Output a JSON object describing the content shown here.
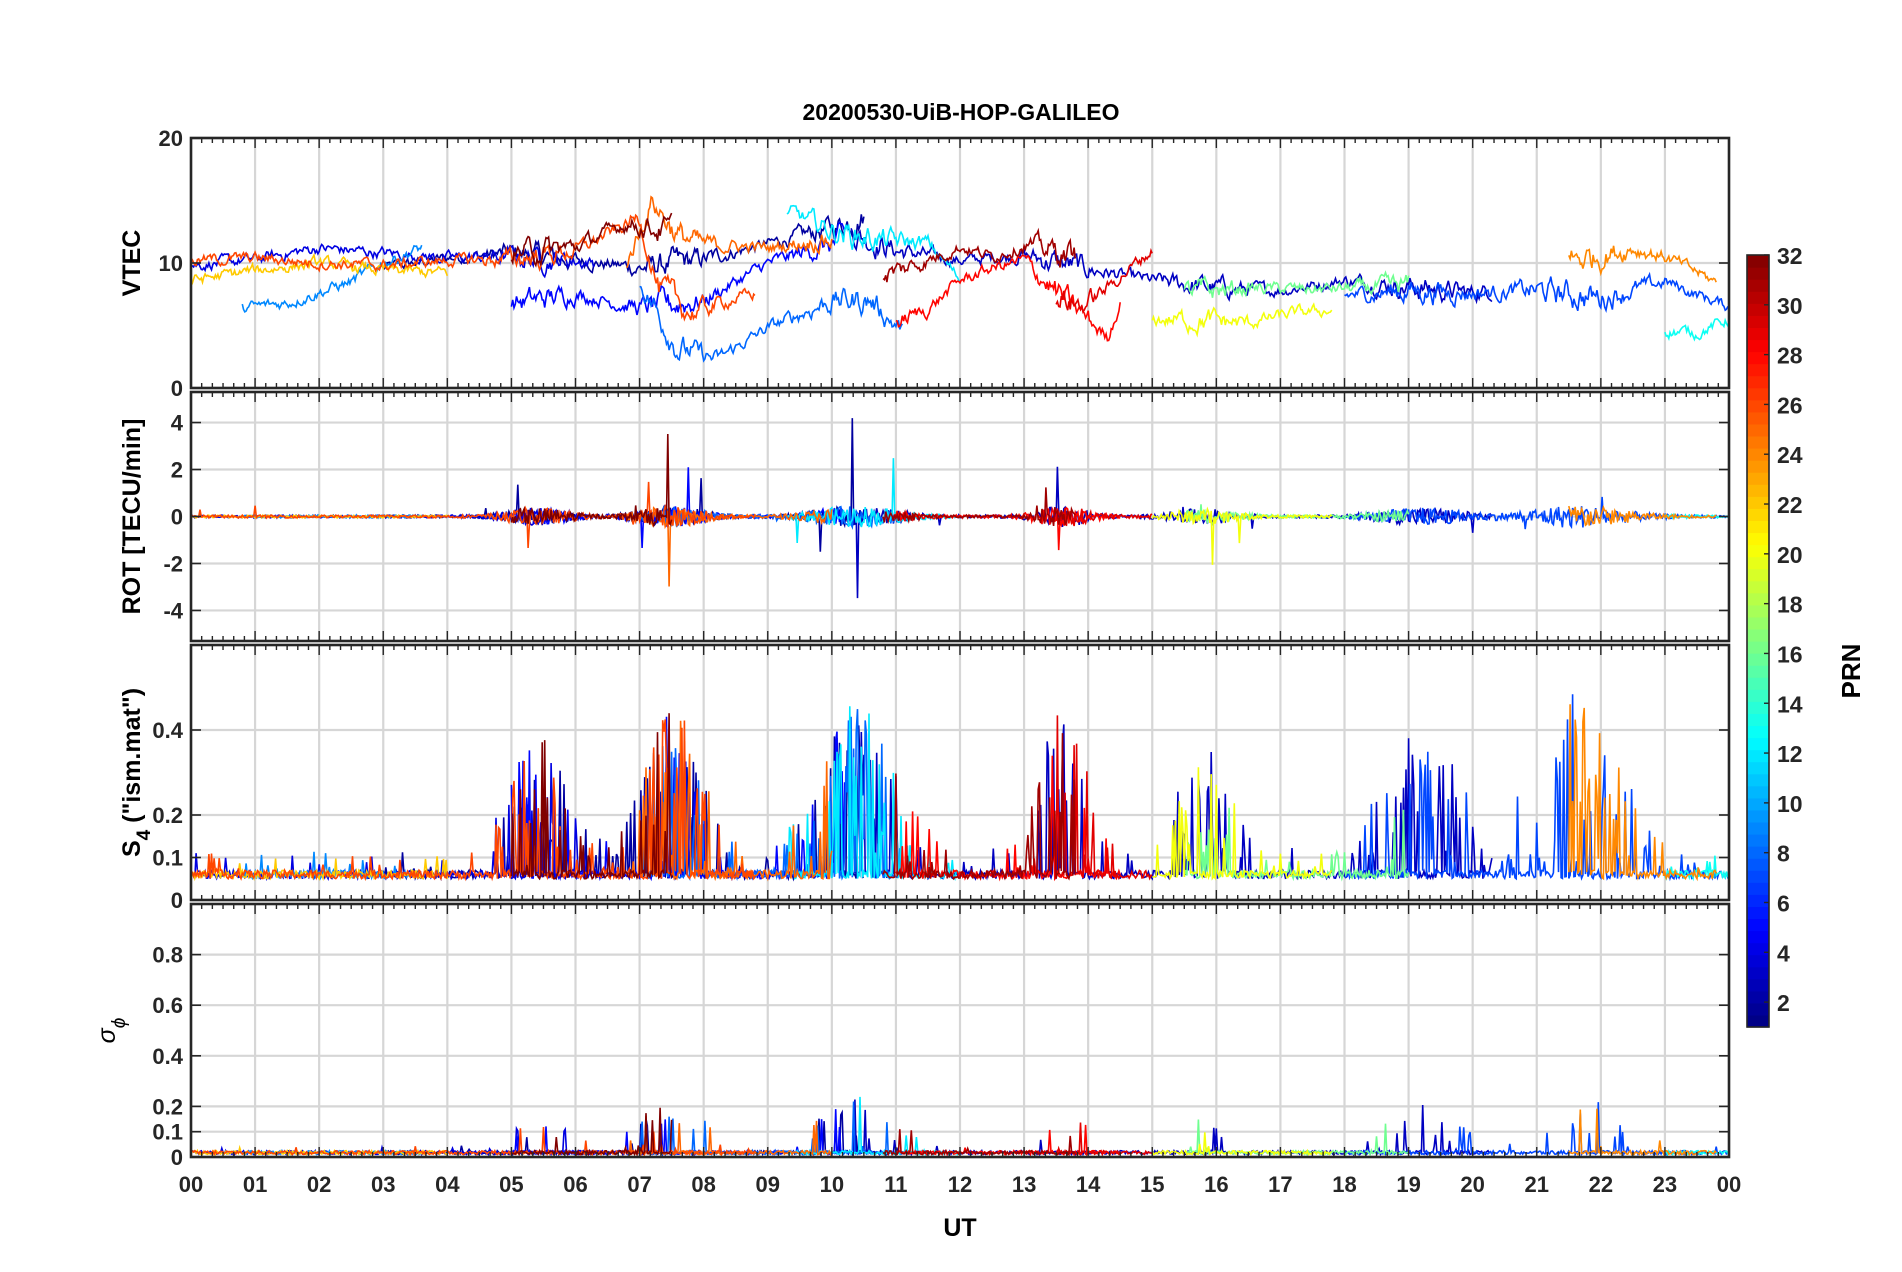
{
  "title": "20200530-UiB-HOP-GALILEO",
  "chart_data": {
    "type": "line",
    "title": "20200530-UiB-HOP-GALILEO",
    "xlabel": "UT",
    "xlim": [
      0,
      24
    ],
    "xticks": [
      "00",
      "01",
      "02",
      "03",
      "04",
      "05",
      "06",
      "07",
      "08",
      "09",
      "10",
      "11",
      "12",
      "13",
      "14",
      "15",
      "16",
      "17",
      "18",
      "19",
      "20",
      "21",
      "22",
      "23",
      "00"
    ],
    "panels": [
      {
        "id": "vtec",
        "ylabel": "VTEC",
        "ylim": [
          0,
          20
        ],
        "yticks": [
          0,
          10,
          20
        ],
        "ytick_labels": [
          "0",
          "10",
          "20"
        ],
        "grid": true
      },
      {
        "id": "rot",
        "ylabel": "ROT [TECU/min]",
        "ylim": [
          -5.3,
          5.3
        ],
        "yticks": [
          -4,
          -2,
          0,
          2,
          4
        ],
        "ytick_labels": [
          "-4",
          "-2",
          "0",
          "2",
          "4"
        ],
        "grid": true
      },
      {
        "id": "s4",
        "ylabel_main": "S",
        "ylabel_sub": "4",
        "ylabel_rest": " (\"ism.mat\")",
        "ylim": [
          0,
          0.6
        ],
        "yticks": [
          0,
          0.1,
          0.2,
          0.4
        ],
        "ytick_labels": [
          "0",
          "0.1",
          "0.2",
          "0.4"
        ],
        "grid": true
      },
      {
        "id": "sigma",
        "ylabel_main": "σ",
        "ylabel_sub": "ϕ",
        "ylim": [
          0,
          1
        ],
        "yticks": [
          0,
          0.1,
          0.2,
          0.4,
          0.6,
          0.8
        ],
        "ytick_labels": [
          "0",
          "0.1",
          "0.2",
          "0.4",
          "0.6",
          "0.8"
        ],
        "grid": true
      }
    ],
    "colorbar": {
      "label": "PRN",
      "range": [
        1,
        32
      ],
      "ticks": [
        2,
        4,
        6,
        8,
        10,
        12,
        14,
        16,
        18,
        20,
        22,
        24,
        26,
        28,
        30,
        32
      ],
      "colormap": "jet"
    },
    "series": [
      {
        "prn": 2,
        "start": 3.0,
        "end": 10.5,
        "vtec": [
          [
            3.0,
            9.6
          ],
          [
            4.0,
            10.4
          ],
          [
            5.0,
            10.8
          ],
          [
            6.0,
            10.2
          ],
          [
            7.0,
            9.6
          ],
          [
            8.0,
            10.3
          ],
          [
            9.0,
            11.5
          ],
          [
            10.0,
            12.8
          ],
          [
            10.5,
            13.8
          ]
        ]
      },
      {
        "prn": 3,
        "start": 10.3,
        "end": 20.3,
        "vtec": [
          [
            10.3,
            12.5
          ],
          [
            11.0,
            11.0
          ],
          [
            12.0,
            10.2
          ],
          [
            13.0,
            10.6
          ],
          [
            14.0,
            9.5
          ],
          [
            15.0,
            8.6
          ],
          [
            16.0,
            8.0
          ],
          [
            17.0,
            7.8
          ],
          [
            18.0,
            8.6
          ],
          [
            19.0,
            8.1
          ],
          [
            20.0,
            7.6
          ],
          [
            20.3,
            7.8
          ]
        ]
      },
      {
        "prn": 4,
        "start": 0.0,
        "end": 6.3,
        "vtec": [
          [
            0.0,
            9.8
          ],
          [
            1.0,
            10.3
          ],
          [
            2.0,
            11.2
          ],
          [
            3.0,
            10.8
          ],
          [
            4.0,
            10.4
          ],
          [
            5.0,
            10.5
          ],
          [
            6.0,
            10.2
          ],
          [
            6.3,
            10.0
          ]
        ]
      },
      {
        "prn": 5,
        "start": 5.0,
        "end": 10.2,
        "vtec": [
          [
            5.0,
            6.8
          ],
          [
            6.0,
            7.5
          ],
          [
            7.0,
            6.4
          ],
          [
            8.0,
            7.0
          ],
          [
            9.0,
            10.0
          ],
          [
            10.0,
            11.5
          ],
          [
            10.2,
            12.0
          ]
        ]
      },
      {
        "prn": 7,
        "start": 18.0,
        "end": 24.0,
        "vtec": [
          [
            18.0,
            7.4
          ],
          [
            19.0,
            7.8
          ],
          [
            20.0,
            7.6
          ],
          [
            21.0,
            7.8
          ],
          [
            22.0,
            7.2
          ],
          [
            23.0,
            8.5
          ],
          [
            24.0,
            6.5
          ]
        ]
      },
      {
        "prn": 8,
        "start": 7.0,
        "end": 11.1,
        "vtec": [
          [
            7.0,
            8.5
          ],
          [
            7.6,
            3.2
          ],
          [
            8.2,
            2.3
          ],
          [
            9.0,
            4.8
          ],
          [
            10.0,
            7.0
          ],
          [
            10.6,
            7.0
          ],
          [
            11.1,
            4.6
          ]
        ]
      },
      {
        "prn": 9,
        "start": 0.8,
        "end": 3.6,
        "vtec": [
          [
            0.8,
            6.4
          ],
          [
            1.5,
            6.8
          ],
          [
            2.5,
            8.5
          ],
          [
            3.0,
            10.0
          ],
          [
            3.6,
            11.2
          ]
        ]
      },
      {
        "prn": 12,
        "start": 9.3,
        "end": 12.0,
        "vtec": [
          [
            9.3,
            14.2
          ],
          [
            10.0,
            12.6
          ],
          [
            10.8,
            11.8
          ],
          [
            11.5,
            11.6
          ],
          [
            12.0,
            8.7
          ]
        ]
      },
      {
        "prn": 13,
        "start": 23.0,
        "end": 24.0,
        "vtec": [
          [
            23.0,
            4.6
          ],
          [
            23.5,
            4.4
          ],
          [
            24.0,
            5.5
          ]
        ]
      },
      {
        "prn": 16,
        "start": 15.5,
        "end": 19.0,
        "vtec": [
          [
            15.5,
            7.6
          ],
          [
            16.5,
            8.0
          ],
          [
            17.5,
            7.9
          ],
          [
            19.0,
            8.1
          ]
        ]
      },
      {
        "prn": 20,
        "start": 15.0,
        "end": 17.8,
        "vtec": [
          [
            15.0,
            5.5
          ],
          [
            15.8,
            5.4
          ],
          [
            16.5,
            5.2
          ],
          [
            17.2,
            6.0
          ],
          [
            17.8,
            6.2
          ]
        ]
      },
      {
        "prn": 22,
        "start": 0.0,
        "end": 4.0,
        "vtec": [
          [
            0.0,
            8.6
          ],
          [
            1.0,
            9.4
          ],
          [
            2.0,
            10.0
          ],
          [
            3.0,
            9.4
          ],
          [
            4.0,
            9.2
          ]
        ]
      },
      {
        "prn": 24,
        "start": 21.5,
        "end": 23.8,
        "vtec": [
          [
            21.5,
            10.2
          ],
          [
            22.0,
            10.6
          ],
          [
            22.5,
            11.2
          ],
          [
            23.0,
            10.5
          ],
          [
            23.5,
            9.3
          ],
          [
            23.8,
            8.4
          ]
        ]
      },
      {
        "prn": 25,
        "start": 6.8,
        "end": 10.0,
        "vtec": [
          [
            6.8,
            10.0
          ],
          [
            7.2,
            15.0
          ],
          [
            7.6,
            12.2
          ],
          [
            8.0,
            11.5
          ],
          [
            9.0,
            11.2
          ],
          [
            10.0,
            12.0
          ]
        ]
      },
      {
        "prn": 26,
        "start": 0.0,
        "end": 8.8,
        "vtec": [
          [
            0.0,
            10.2
          ],
          [
            1.0,
            10.4
          ],
          [
            2.0,
            10.0
          ],
          [
            3.0,
            9.8
          ],
          [
            4.0,
            10.2
          ],
          [
            5.0,
            10.3
          ],
          [
            6.0,
            11.0
          ],
          [
            7.0,
            13.6
          ],
          [
            7.3,
            8.0
          ],
          [
            7.8,
            6.0
          ],
          [
            8.5,
            7.2
          ],
          [
            8.8,
            7.5
          ]
        ]
      },
      {
        "prn": 28,
        "start": 11.0,
        "end": 14.5,
        "vtec": [
          [
            11.0,
            5.2
          ],
          [
            11.5,
            6.3
          ],
          [
            12.0,
            8.6
          ],
          [
            12.5,
            9.6
          ],
          [
            13.0,
            10.2
          ],
          [
            13.6,
            7.2
          ],
          [
            14.0,
            5.5
          ],
          [
            14.3,
            4.0
          ],
          [
            14.5,
            6.8
          ]
        ]
      },
      {
        "prn": 29,
        "start": 13.5,
        "end": 15.0,
        "vtec": [
          [
            13.5,
            7.4
          ],
          [
            13.9,
            6.6
          ],
          [
            14.3,
            8.0
          ],
          [
            14.7,
            9.8
          ],
          [
            15.0,
            11.0
          ]
        ]
      },
      {
        "prn": 31,
        "start": 10.8,
        "end": 13.8,
        "vtec": [
          [
            10.8,
            9.0
          ],
          [
            11.5,
            10.2
          ],
          [
            12.0,
            11.3
          ],
          [
            12.5,
            10.5
          ],
          [
            13.0,
            11.5
          ],
          [
            13.8,
            10.6
          ]
        ]
      },
      {
        "prn": 32,
        "start": 5.0,
        "end": 7.5,
        "vtec": [
          [
            5.0,
            10.8
          ],
          [
            6.0,
            11.3
          ],
          [
            6.8,
            13.2
          ],
          [
            7.5,
            12.5
          ]
        ]
      }
    ]
  }
}
